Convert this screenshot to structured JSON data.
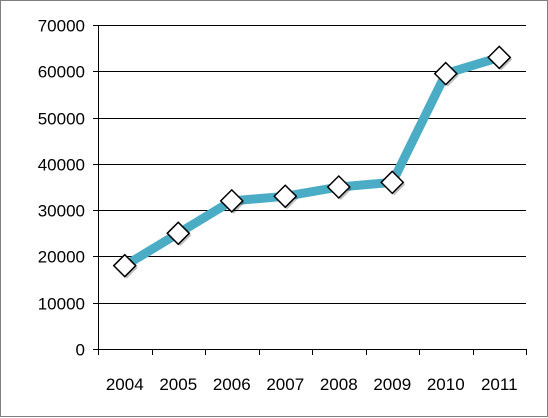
{
  "chart_data": {
    "type": "line",
    "title": "",
    "xlabel": "",
    "ylabel": "",
    "categories": [
      "2004",
      "2005",
      "2006",
      "2007",
      "2008",
      "2009",
      "2010",
      "2011"
    ],
    "series": [
      {
        "values": [
          18000,
          25000,
          32000,
          33000,
          35000,
          36000,
          59500,
          63000
        ]
      }
    ],
    "ylim": [
      0,
      70000
    ],
    "yticks": [
      "0",
      "10000",
      "20000",
      "30000",
      "40000",
      "50000",
      "60000",
      "70000"
    ],
    "grid": true,
    "legend": "none",
    "colors": {
      "line": "#4bacc6",
      "marker_fill": "#ffffff",
      "marker_stroke": "#000000",
      "grid": "#000000"
    }
  }
}
